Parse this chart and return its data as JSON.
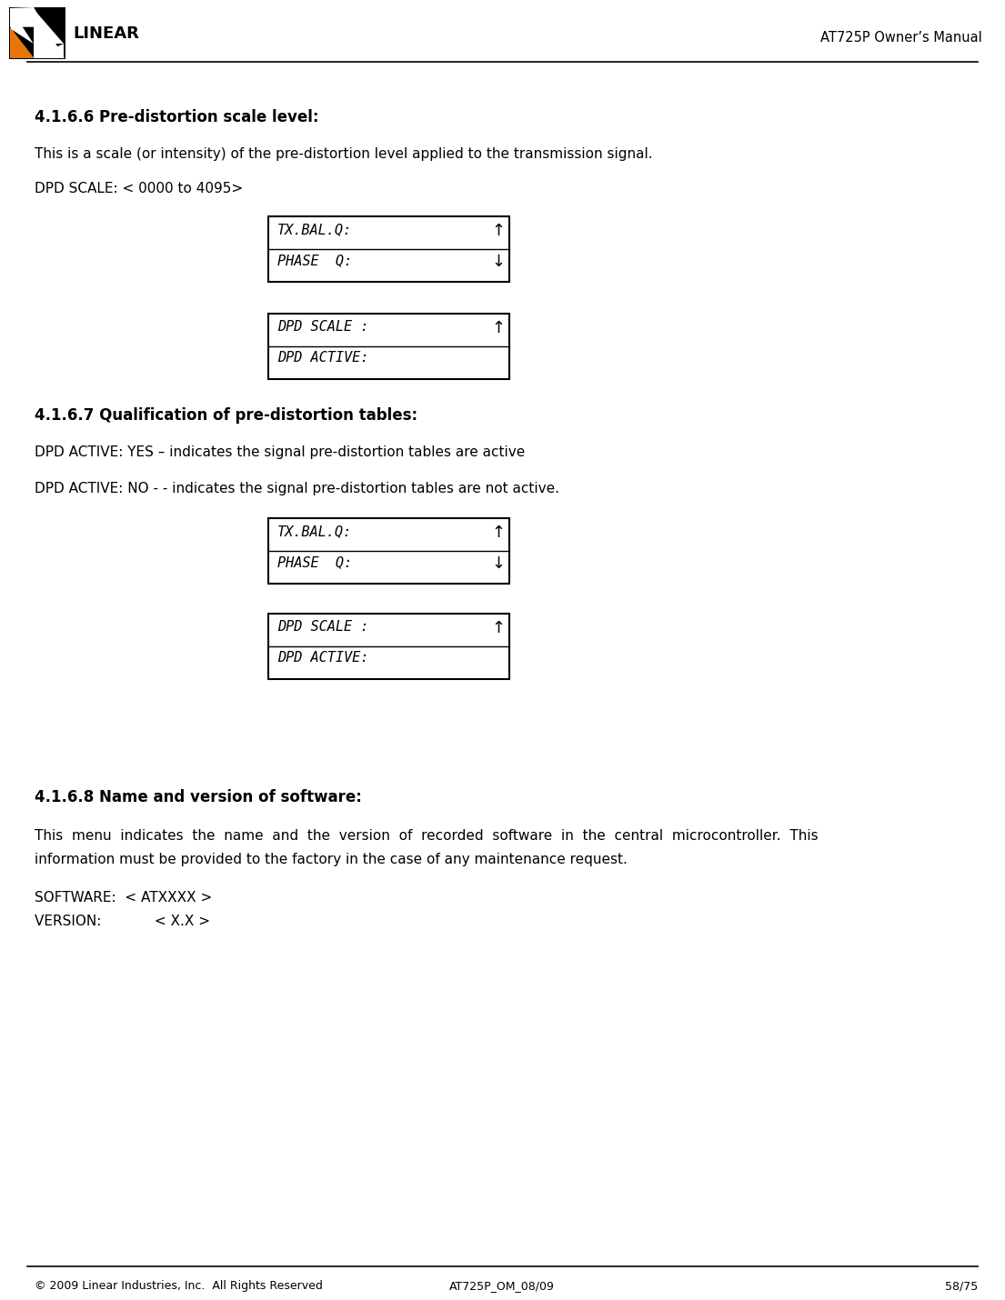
{
  "bg_color": "#ffffff",
  "header_title": "AT725P Owner’s Manual",
  "footer_left": "© 2009 Linear Industries, Inc.  All Rights Reserved",
  "footer_center": "AT725P_OM_08/09",
  "footer_right": "58/75",
  "section_466_title": "4.1.6.6 Pre-distortion scale level:",
  "section_466_body": "This is a scale (or intensity) of the pre-distortion level applied to the transmission signal.",
  "section_466_item": "DPD SCALE: < 0000 to 4095>",
  "box1_line1": "TX.BAL.Q:",
  "box1_line2": "PHASE  Q:",
  "box1_arrow1": "↑",
  "box1_arrow2": "↓",
  "box2_line1": "DPD SCALE :",
  "box2_line2": "DPD ACTIVE:",
  "box2_arrow1": "↑",
  "section_467_title": "4.1.6.7 Qualification of pre-distortion tables:",
  "section_467_body1": "DPD ACTIVE: YES – indicates the signal pre-distortion tables are active",
  "section_467_body2": "DPD ACTIVE: NO - - indicates the signal pre-distortion tables are not active.",
  "box3_line1": "TX.BAL.Q:",
  "box3_line2": "PHASE  Q:",
  "box3_arrow1": "↑",
  "box3_arrow2": "↓",
  "box4_line1": "DPD SCALE :",
  "box4_line2": "DPD ACTIVE:",
  "box4_arrow1": "↑",
  "section_468_title": "4.1.6.8 Name and version of software:",
  "section_468_body1": "This  menu  indicates  the  name  and  the  version  of  recorded  software  in  the  central  microcontroller.  This",
  "section_468_body2": "information must be provided to the factory in the case of any maintenance request.",
  "section_468_item1": "SOFTWARE:  < ATXXXX >",
  "section_468_item2": "VERSION:            < X.X >"
}
